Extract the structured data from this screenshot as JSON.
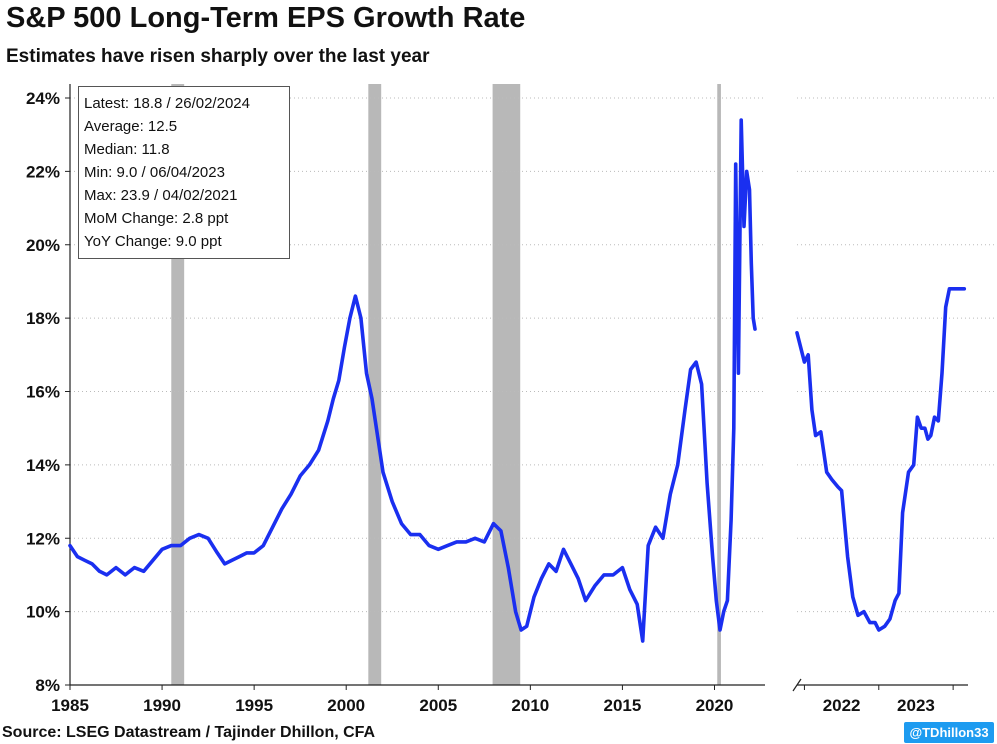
{
  "header": {
    "title": "S&P 500 Long-Term EPS Growth Rate",
    "subtitle": "Estimates have risen sharply over the last year"
  },
  "stats": {
    "latest": "Latest: 18.8 / 26/02/2024",
    "average": "Average: 12.5",
    "median": "Median: 11.8",
    "min": "Min: 9.0 / 06/04/2023",
    "max": "Max: 23.9 / 04/02/2021",
    "mom": "MoM Change: 2.8 ppt",
    "yoy": "YoY Change: 9.0 ppt"
  },
  "footer": {
    "source": "Source: LSEG Datastream / Tajinder Dhillon, CFA",
    "handle": "@TDhillon33"
  },
  "colors": {
    "line": "#1a2ff0",
    "recession": "#b8b8b8",
    "grid": "#bbbbbb"
  },
  "chart_data": [
    {
      "type": "line",
      "panel": "main",
      "x_range": [
        1985,
        2022.2
      ],
      "ylim": [
        8,
        24
      ],
      "y_ticks": [
        8,
        10,
        12,
        14,
        16,
        18,
        20,
        22,
        24
      ],
      "y_tick_labels": [
        "8%",
        "10%",
        "12%",
        "14%",
        "16%",
        "18%",
        "20%",
        "22%",
        "24%"
      ],
      "x_ticks": [
        1985,
        1990,
        1995,
        2000,
        2005,
        2010,
        2015,
        2020
      ],
      "x_tick_labels": [
        "1985",
        "1990",
        "1995",
        "2000",
        "2005",
        "2010",
        "2015",
        "2020"
      ],
      "grid": "horizontal dotted",
      "recessions": [
        [
          1990.5,
          1991.2
        ],
        [
          2001.2,
          2001.9
        ],
        [
          2007.95,
          2009.45
        ],
        [
          2020.15,
          2020.35
        ]
      ],
      "x": [
        1985.0,
        1985.4,
        1985.8,
        1986.2,
        1986.6,
        1987.0,
        1987.5,
        1988.0,
        1988.5,
        1989.0,
        1989.5,
        1990.0,
        1990.5,
        1991.0,
        1991.5,
        1992.0,
        1992.5,
        1993.0,
        1993.4,
        1993.8,
        1994.2,
        1994.6,
        1995.0,
        1995.5,
        1996.0,
        1996.5,
        1997.0,
        1997.5,
        1998.0,
        1998.5,
        1999.0,
        1999.3,
        1999.6,
        1999.9,
        2000.2,
        2000.5,
        2000.8,
        2001.1,
        2001.4,
        2001.7,
        2002.0,
        2002.5,
        2003.0,
        2003.5,
        2004.0,
        2004.5,
        2005.0,
        2005.5,
        2006.0,
        2006.5,
        2007.0,
        2007.5,
        2008.0,
        2008.4,
        2008.8,
        2009.2,
        2009.5,
        2009.8,
        2010.2,
        2010.6,
        2011.0,
        2011.4,
        2011.8,
        2012.2,
        2012.6,
        2013.0,
        2013.5,
        2014.0,
        2014.5,
        2015.0,
        2015.4,
        2015.8,
        2016.1,
        2016.4,
        2016.8,
        2017.2,
        2017.6,
        2018.0,
        2018.4,
        2018.7,
        2019.0,
        2019.3,
        2019.6,
        2019.9,
        2020.1,
        2020.3,
        2020.5,
        2020.7,
        2020.9,
        2021.05,
        2021.15,
        2021.3,
        2021.45,
        2021.6,
        2021.75,
        2021.9,
        2022.0,
        2022.1,
        2022.2
      ],
      "y": [
        11.8,
        11.5,
        11.4,
        11.3,
        11.1,
        11.0,
        11.2,
        11.0,
        11.2,
        11.1,
        11.4,
        11.7,
        11.8,
        11.8,
        12.0,
        12.1,
        12.0,
        11.6,
        11.3,
        11.4,
        11.5,
        11.6,
        11.6,
        11.8,
        12.3,
        12.8,
        13.2,
        13.7,
        14.0,
        14.4,
        15.2,
        15.8,
        16.3,
        17.2,
        18.0,
        18.6,
        18.0,
        16.5,
        15.8,
        14.8,
        13.8,
        13.0,
        12.4,
        12.1,
        12.1,
        11.8,
        11.7,
        11.8,
        11.9,
        11.9,
        12.0,
        11.9,
        12.4,
        12.2,
        11.2,
        10.0,
        9.5,
        9.6,
        10.4,
        10.9,
        11.3,
        11.1,
        11.7,
        11.3,
        10.9,
        10.3,
        10.7,
        11.0,
        11.0,
        11.2,
        10.6,
        10.2,
        9.2,
        11.8,
        12.3,
        12.0,
        13.2,
        14.0,
        15.5,
        16.6,
        16.8,
        16.2,
        13.5,
        11.5,
        10.3,
        9.5,
        10.0,
        10.3,
        12.5,
        15.0,
        22.2,
        16.5,
        23.4,
        20.5,
        22.0,
        21.5,
        19.5,
        18.0,
        17.7
      ]
    },
    {
      "type": "line",
      "panel": "zoom",
      "x_range": [
        2021.9,
        2024.2
      ],
      "ylim": [
        8,
        24
      ],
      "x_ticks": [
        2022.5,
        2023.5
      ],
      "x_tick_labels": [
        "2022",
        "2023"
      ],
      "x": [
        2021.9,
        2022.0,
        2022.05,
        2022.1,
        2022.15,
        2022.22,
        2022.3,
        2022.37,
        2022.45,
        2022.5,
        2022.58,
        2022.65,
        2022.72,
        2022.8,
        2022.88,
        2022.95,
        2023.0,
        2023.08,
        2023.15,
        2023.22,
        2023.27,
        2023.32,
        2023.4,
        2023.47,
        2023.52,
        2023.57,
        2023.62,
        2023.66,
        2023.7,
        2023.75,
        2023.8,
        2023.85,
        2023.9,
        2023.95,
        2024.0,
        2024.05,
        2024.1,
        2024.13,
        2024.15
      ],
      "y": [
        17.6,
        16.8,
        17.0,
        15.5,
        14.8,
        14.9,
        13.8,
        13.6,
        13.4,
        13.3,
        11.5,
        10.4,
        9.9,
        10.0,
        9.7,
        9.7,
        9.5,
        9.6,
        9.8,
        10.3,
        10.5,
        12.7,
        13.8,
        14.0,
        15.3,
        15.0,
        15.0,
        14.7,
        14.8,
        15.3,
        15.2,
        16.5,
        18.3,
        18.8,
        18.8,
        18.8,
        18.8,
        18.8,
        18.8
      ]
    }
  ]
}
